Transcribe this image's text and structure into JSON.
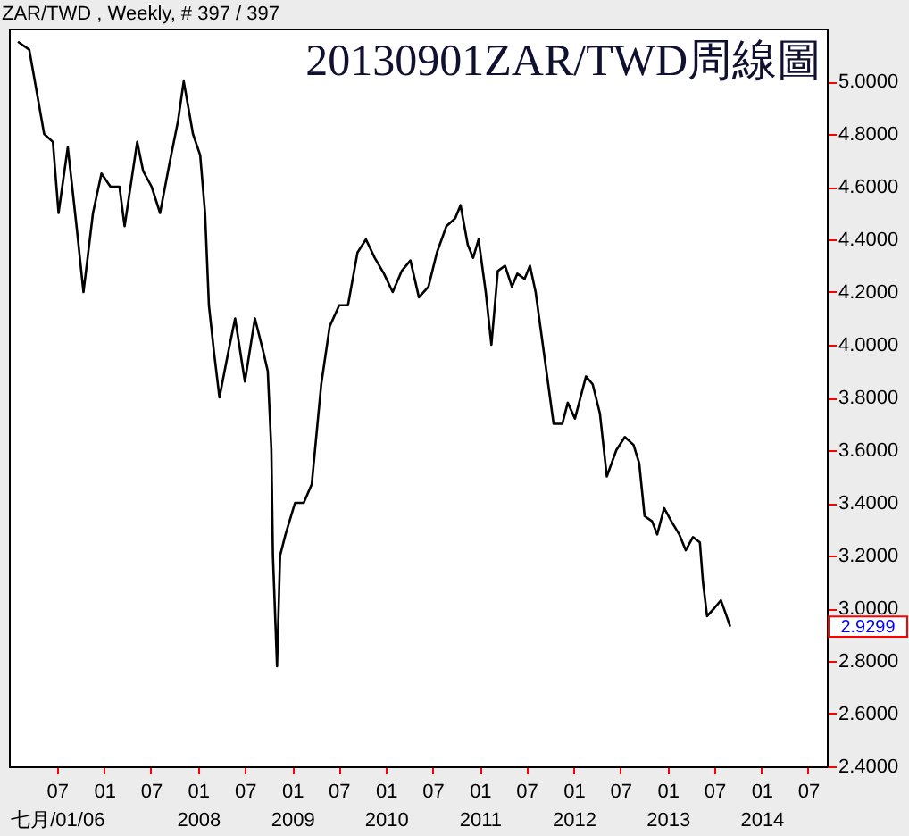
{
  "chart_data": {
    "type": "line",
    "title": "20130901ZAR/TWD周線圖",
    "annotations": [
      "ZAR/TWD , Weekly, # 397 / 397",
      "2.9299"
    ],
    "x": [
      "2006-01-30",
      "2006-03-15",
      "2006-05-12",
      "2006-06-15",
      "2006-07-07",
      "2006-08-12",
      "2006-09-15",
      "2006-10-12",
      "2006-11-18",
      "2006-12-21",
      "2007-01-25",
      "2007-03-01",
      "2007-03-21",
      "2007-05-09",
      "2007-06-01",
      "2007-07-04",
      "2007-08-06",
      "2007-09-12",
      "2007-10-15",
      "2007-11-06",
      "2007-12-12",
      "2008-01-09",
      "2008-01-28",
      "2008-02-12",
      "2008-03-03",
      "2008-03-24",
      "2008-04-27",
      "2008-05-24",
      "2008-07-01",
      "2008-08-09",
      "2008-09-09",
      "2008-09-28",
      "2008-10-12",
      "2008-10-18",
      "2008-11-03",
      "2008-11-15",
      "2008-12-06",
      "2009-01-12",
      "2009-02-15",
      "2009-03-18",
      "2009-04-24",
      "2009-05-27",
      "2009-07-03",
      "2009-08-06",
      "2009-09-12",
      "2009-10-15",
      "2009-11-18",
      "2009-12-24",
      "2010-01-27",
      "2010-03-03",
      "2010-04-06",
      "2010-05-09",
      "2010-06-15",
      "2010-07-18",
      "2010-08-24",
      "2010-09-27",
      "2010-10-18",
      "2010-11-15",
      "2010-12-06",
      "2010-12-27",
      "2011-01-24",
      "2011-02-15",
      "2011-03-12",
      "2011-04-09",
      "2011-05-06",
      "2011-05-27",
      "2011-06-24",
      "2011-07-15",
      "2011-08-06",
      "2011-08-27",
      "2011-09-24",
      "2011-10-15",
      "2011-11-18",
      "2011-12-09",
      "2012-01-06",
      "2012-02-18",
      "2012-03-15",
      "2012-04-12",
      "2012-05-09",
      "2012-06-15",
      "2012-07-18",
      "2012-08-21",
      "2012-09-12",
      "2012-10-03",
      "2012-11-01",
      "2012-11-21",
      "2012-12-18",
      "2013-01-15",
      "2013-02-15",
      "2013-03-12",
      "2013-04-09",
      "2013-05-06",
      "2013-05-18",
      "2013-06-03",
      "2013-07-01",
      "2013-07-27",
      "2013-08-18",
      "2013-09-01"
    ],
    "series": [
      {
        "color": "#000000",
        "values": [
          5.15,
          5.12,
          4.8,
          4.77,
          4.5,
          4.75,
          4.45,
          4.2,
          4.5,
          4.65,
          4.6,
          4.6,
          4.45,
          4.77,
          4.66,
          4.6,
          4.5,
          4.69,
          4.85,
          5.0,
          4.8,
          4.72,
          4.5,
          4.15,
          3.97,
          3.8,
          3.97,
          4.1,
          3.86,
          4.1,
          3.98,
          3.9,
          3.6,
          3.2,
          2.78,
          3.2,
          3.28,
          3.4,
          3.4,
          3.47,
          3.85,
          4.07,
          4.15,
          4.15,
          4.35,
          4.4,
          4.33,
          4.27,
          4.2,
          4.28,
          4.32,
          4.18,
          4.22,
          4.35,
          4.45,
          4.48,
          4.53,
          4.38,
          4.33,
          4.4,
          4.2,
          4.0,
          4.28,
          4.3,
          4.22,
          4.27,
          4.25,
          4.3,
          4.2,
          4.05,
          3.85,
          3.7,
          3.7,
          3.78,
          3.72,
          3.88,
          3.85,
          3.74,
          3.5,
          3.6,
          3.65,
          3.62,
          3.55,
          3.35,
          3.33,
          3.28,
          3.38,
          3.33,
          3.28,
          3.22,
          3.27,
          3.25,
          3.1,
          2.97,
          3.0,
          3.03,
          2.97,
          2.93
        ]
      }
    ],
    "xlim": [
      "2005-12-26",
      "2014-09-12"
    ],
    "xticks": [
      {
        "value": "2006-07-01",
        "label": "07\n七月/01/06"
      },
      {
        "value": "2007-01-01",
        "label": "01"
      },
      {
        "value": "2007-07-01",
        "label": "07"
      },
      {
        "value": "2008-01-01",
        "label": "01\n2008"
      },
      {
        "value": "2008-07-01",
        "label": "07"
      },
      {
        "value": "2009-01-01",
        "label": "01\n2009"
      },
      {
        "value": "2009-07-01",
        "label": "07"
      },
      {
        "value": "2010-01-01",
        "label": "01\n2010"
      },
      {
        "value": "2010-07-01",
        "label": "07"
      },
      {
        "value": "2011-01-01",
        "label": "01\n2011"
      },
      {
        "value": "2011-07-01",
        "label": "07"
      },
      {
        "value": "2012-01-01",
        "label": "01\n2012"
      },
      {
        "value": "2012-07-01",
        "label": "07"
      },
      {
        "value": "2013-01-01",
        "label": "01\n2013"
      },
      {
        "value": "2013-07-01",
        "label": "07"
      },
      {
        "value": "2014-01-01",
        "label": "01\n2014"
      },
      {
        "value": "2014-07-01",
        "label": "07"
      }
    ],
    "ylim": [
      2.4,
      5.2
    ],
    "yticks": [
      {
        "value": 2.4,
        "label": "2.4000"
      },
      {
        "value": 2.6,
        "label": "2.6000"
      },
      {
        "value": 2.8,
        "label": "2.8000"
      },
      {
        "value": 3.0,
        "label": "3.0000"
      },
      {
        "value": 3.2,
        "label": "3.2000"
      },
      {
        "value": 3.4,
        "label": "3.4000"
      },
      {
        "value": 3.6,
        "label": "3.6000"
      },
      {
        "value": 3.8,
        "label": "3.8000"
      },
      {
        "value": 4.0,
        "label": "4.0000"
      },
      {
        "value": 4.2,
        "label": "4.2000"
      },
      {
        "value": 4.4,
        "label": "4.4000"
      },
      {
        "value": 4.6,
        "label": "4.6000"
      },
      {
        "value": 4.8,
        "label": "4.8000"
      },
      {
        "value": 5.0,
        "label": "5.0000"
      }
    ],
    "grid": false,
    "marker": "none",
    "line_style": "solid"
  }
}
